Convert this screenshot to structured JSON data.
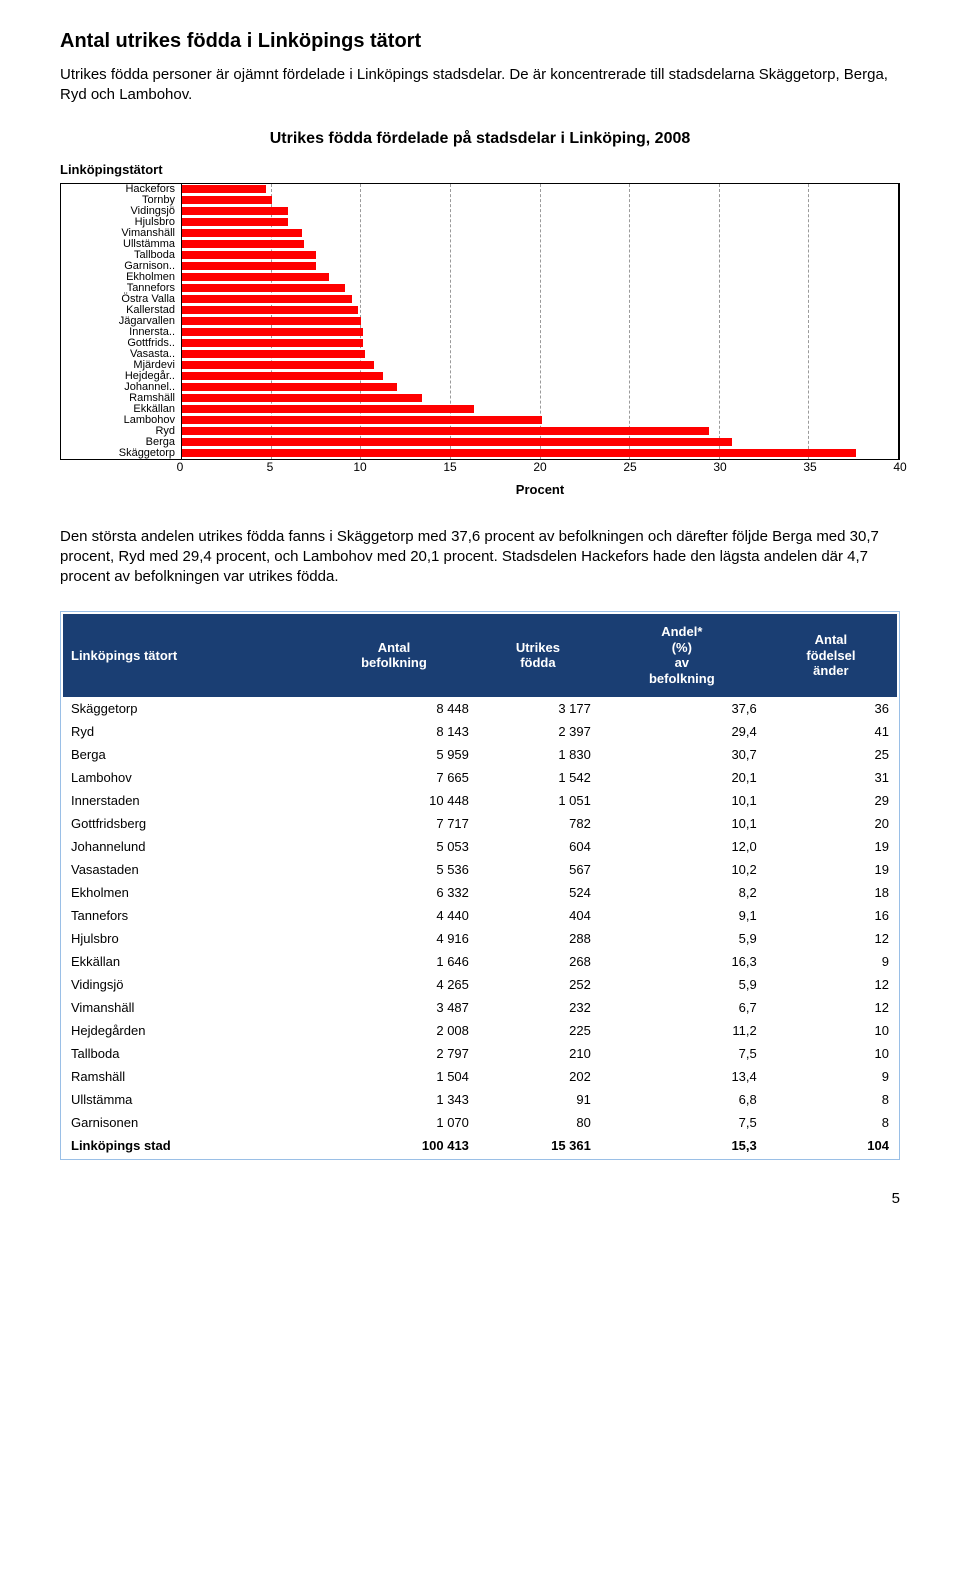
{
  "heading": "Antal utrikes födda i Linköpings tätort",
  "para1": "Utrikes födda personer är ojämnt fördelade i Linköpings stadsdelar. De är koncentrerade till stadsdelarna Skäggetorp, Berga, Ryd och Lambohov.",
  "para2": "Den största andelen utrikes födda fanns i Skäggetorp med 37,6 procent av befolkningen och därefter följde Berga med 30,7 procent, Ryd med 29,4 procent, och Lambohov med 20,1 procent. Stadsdelen Hackefors hade den lägsta andelen där 4,7 procent av befolkningen var utrikes födda.",
  "chart": {
    "type": "bar-horizontal",
    "title": "Utrikes födda fördelade på stadsdelar i Linköping, 2008",
    "ylabel": "Linköpingstätort",
    "xlabel": "Procent",
    "xlim": [
      0,
      40
    ],
    "xtick_step": 5,
    "xticks": [
      0,
      5,
      10,
      15,
      20,
      25,
      30,
      35,
      40
    ],
    "bar_color": "#ff0000",
    "grid_color": "#9a9a9a",
    "border_color": "#000000",
    "background_color": "#ffffff",
    "label_fontsize": 11,
    "categories": [
      "Hackefors",
      "Tornby",
      "Vidingsjö",
      "Hjulsbro",
      "Vimanshäll",
      "Ullstämma",
      "Tallboda",
      "Garnison..",
      "Ekholmen",
      "Tannefors",
      "Östra Valla",
      "Kallerstad",
      "Jägarvallen",
      "Innersta..",
      "Gottfrids..",
      "Vasasta..",
      "Mjärdevi",
      "Hejdegår..",
      "Johannel..",
      "Ramshäll",
      "Ekkällan",
      "Lambohov",
      "Ryd",
      "Berga",
      "Skäggetorp"
    ],
    "values": [
      4.7,
      5.0,
      5.9,
      5.9,
      6.7,
      6.8,
      7.5,
      7.5,
      8.2,
      9.1,
      9.5,
      9.8,
      10.0,
      10.1,
      10.1,
      10.2,
      10.7,
      11.2,
      12.0,
      13.4,
      16.3,
      20.1,
      29.4,
      30.7,
      37.6
    ]
  },
  "table": {
    "header_bg": "#1a3e73",
    "header_color": "#ffffff",
    "border_color": "#9abfe6",
    "columns": [
      "Linköpings tätort",
      "Antal befolkning",
      "Utrikes födda",
      "Andel* (%) av befolkning",
      "Antal födelsel änder"
    ],
    "column_align": [
      "left",
      "right",
      "right",
      "right",
      "right"
    ],
    "rows": [
      [
        "Skäggetorp",
        "8 448",
        "3 177",
        "37,6",
        "36"
      ],
      [
        "Ryd",
        "8 143",
        "2 397",
        "29,4",
        "41"
      ],
      [
        "Berga",
        "5 959",
        "1 830",
        "30,7",
        "25"
      ],
      [
        "Lambohov",
        "7 665",
        "1 542",
        "20,1",
        "31"
      ],
      [
        "Innerstaden",
        "10 448",
        "1 051",
        "10,1",
        "29"
      ],
      [
        "Gottfridsberg",
        "7 717",
        "782",
        "10,1",
        "20"
      ],
      [
        "Johannelund",
        "5 053",
        "604",
        "12,0",
        "19"
      ],
      [
        "Vasastaden",
        "5 536",
        "567",
        "10,2",
        "19"
      ],
      [
        "Ekholmen",
        "6 332",
        "524",
        "8,2",
        "18"
      ],
      [
        "Tannefors",
        "4 440",
        "404",
        "9,1",
        "16"
      ],
      [
        "Hjulsbro",
        "4 916",
        "288",
        "5,9",
        "12"
      ],
      [
        "Ekkällan",
        "1 646",
        "268",
        "16,3",
        "9"
      ],
      [
        "Vidingsjö",
        "4 265",
        "252",
        "5,9",
        "12"
      ],
      [
        "Vimanshäll",
        "3 487",
        "232",
        "6,7",
        "12"
      ],
      [
        "Hejdegården",
        "2 008",
        "225",
        "11,2",
        "10"
      ],
      [
        "Tallboda",
        "2 797",
        "210",
        "7,5",
        "10"
      ],
      [
        "Ramshäll",
        "1 504",
        "202",
        "13,4",
        "9"
      ],
      [
        "Ullstämma",
        "1 343",
        "91",
        "6,8",
        "8"
      ],
      [
        "Garnisonen",
        "1 070",
        "80",
        "7,5",
        "8"
      ]
    ],
    "total_row": [
      "Linköpings stad",
      "100 413",
      "15 361",
      "15,3",
      "104"
    ]
  },
  "page_number": "5"
}
